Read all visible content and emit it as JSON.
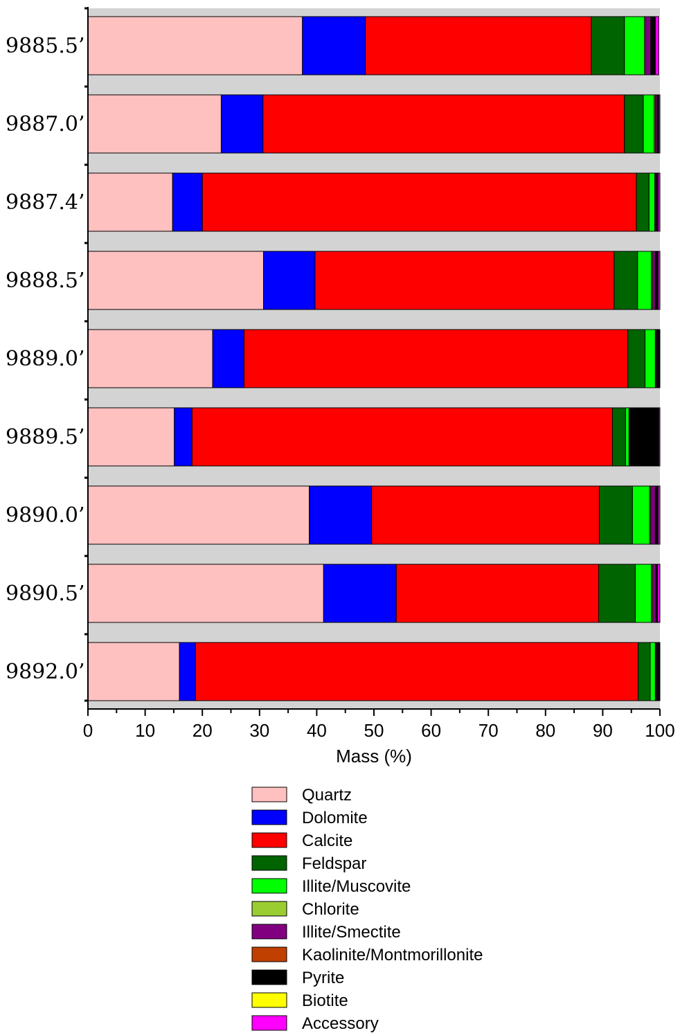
{
  "chart_data": {
    "type": "bar",
    "orientation": "horizontal",
    "stacked": true,
    "xlabel": "Mass (%)",
    "ylabel": "",
    "xlim": [
      0,
      100
    ],
    "xticks": [
      "0",
      "10",
      "20",
      "30",
      "40",
      "50",
      "60",
      "70",
      "80",
      "90",
      "100"
    ],
    "categories": [
      "9885.5’",
      "9887.0’",
      "9887.4’",
      "9888.5’",
      "9889.0’",
      "9889.5’",
      "9890.0’",
      "9890.5’",
      "9892.0’"
    ],
    "series": [
      {
        "name": "Quartz",
        "color": "#ffc0c0",
        "values": [
          37.5,
          23.3,
          14.8,
          30.7,
          21.8,
          15.1,
          38.7,
          41.2,
          16.0
        ]
      },
      {
        "name": "Dolomite",
        "color": "#0000ff",
        "values": [
          11.0,
          7.3,
          5.2,
          9.0,
          5.5,
          3.1,
          10.9,
          12.7,
          2.8
        ]
      },
      {
        "name": "Calcite",
        "color": "#ff0000",
        "values": [
          39.5,
          63.2,
          75.9,
          52.3,
          67.1,
          73.5,
          39.8,
          35.4,
          77.4
        ]
      },
      {
        "name": "Feldspar",
        "color": "#006400",
        "values": [
          5.8,
          3.3,
          2.2,
          4.1,
          3.0,
          2.3,
          5.8,
          6.4,
          2.1
        ]
      },
      {
        "name": "Illite/Muscovite",
        "color": "#00ff00",
        "values": [
          3.5,
          1.9,
          1.0,
          2.4,
          1.8,
          0.6,
          3.0,
          2.8,
          0.9
        ]
      },
      {
        "name": "Chlorite",
        "color": "#9acd32",
        "values": [
          0.2,
          0.2,
          0.1,
          0.2,
          0.1,
          0.1,
          0.2,
          0.2,
          0.1
        ]
      },
      {
        "name": "Illite/Smectite",
        "color": "#800080",
        "values": [
          0.9,
          0.3,
          0.2,
          0.5,
          0.2,
          0.1,
          0.8,
          0.6,
          0.2
        ]
      },
      {
        "name": "Kaolinite/Montmorillonite",
        "color": "#c04000",
        "values": [
          0.1,
          0.1,
          0.1,
          0.1,
          0.1,
          0.1,
          0.1,
          0.1,
          0.1
        ]
      },
      {
        "name": "Pyrite",
        "color": "#000000",
        "values": [
          0.6,
          0.1,
          0.1,
          0.3,
          0.2,
          4.8,
          0.3,
          0.1,
          0.4
        ]
      },
      {
        "name": "Biotite",
        "color": "#ffff00",
        "values": [
          0.1,
          0.1,
          0.1,
          0.1,
          0.1,
          0.1,
          0.1,
          0.1,
          0.1
        ]
      },
      {
        "name": "Accessory",
        "color": "#ff00ff",
        "values": [
          0.6,
          0.2,
          0.3,
          0.3,
          0.1,
          0.2,
          0.3,
          0.4,
          0.1
        ]
      }
    ],
    "legend_position": "bottom",
    "band_color": "#d3d3d3"
  }
}
